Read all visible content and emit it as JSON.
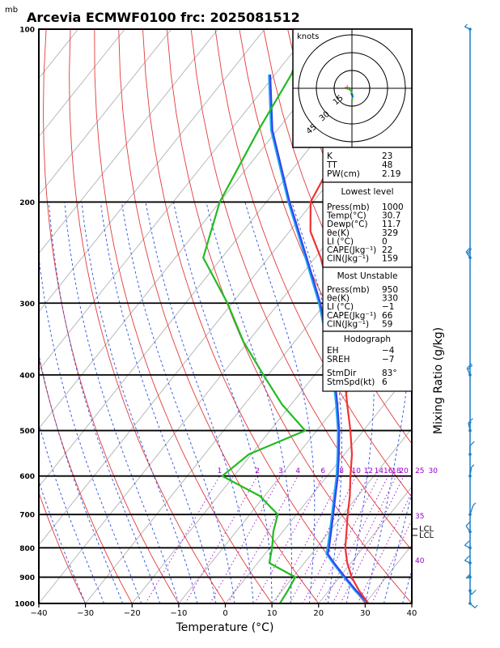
{
  "header": {
    "unit_mb": "mb",
    "title": "Arcevia ECMWF0100 frc: 2025081512"
  },
  "hodograph": {
    "unit": "knots",
    "ring_labels": [
      "15",
      "30",
      "45"
    ]
  },
  "indices": {
    "top": [
      {
        "label": "K",
        "value": "23"
      },
      {
        "label": "TT",
        "value": "48"
      },
      {
        "label": "PW(cm)",
        "value": "2.19"
      }
    ],
    "lowest": {
      "header": "Lowest level",
      "rows": [
        {
          "label": "Press(mb)",
          "value": "1000"
        },
        {
          "label": "Temp(°C)",
          "value": "30.7"
        },
        {
          "label": "Dewp(°C)",
          "value": "11.7"
        },
        {
          "label": "θe(K)",
          "value": "329"
        },
        {
          "label": "LI (°C)",
          "value": "0"
        },
        {
          "label": "CAPE(Jkg⁻¹)",
          "value": "22"
        },
        {
          "label": "CIN(Jkg⁻¹)",
          "value": "159"
        }
      ]
    },
    "unstable": {
      "header": "Most Unstable",
      "rows": [
        {
          "label": "Press(mb)",
          "value": "950"
        },
        {
          "label": "θe(K)",
          "value": "330"
        },
        {
          "label": "LI (°C)",
          "value": "−1"
        },
        {
          "label": "CAPE(Jkg⁻¹)",
          "value": "66"
        },
        {
          "label": "CIN(Jkg⁻¹)",
          "value": "59"
        }
      ]
    },
    "hodo": {
      "header": "Hodograph",
      "rows": [
        {
          "label": "EH",
          "value": "−4"
        },
        {
          "label": "SREH",
          "value": "−7"
        },
        {
          "label": "StmDir",
          "value": "83°"
        },
        {
          "label": "StmSpd(kt)",
          "value": "6"
        }
      ]
    }
  },
  "side_labels": {
    "mixing_ratio": "Mixing Ratio (g/kg)",
    "lcl_labels": [
      "LCL",
      "LCL"
    ],
    "theta_labels": [
      "35",
      "40"
    ]
  },
  "chart_data": {
    "type": "line",
    "chart_kind": "Skew-T log-P diagram",
    "xlabel": "Temperature (°C)",
    "ylabel": "",
    "x_ticks": [
      "−40",
      "−30",
      "−20",
      "−10",
      "0",
      "10",
      "20",
      "30",
      "40"
    ],
    "y_ticks": [
      "100",
      "200",
      "300",
      "400",
      "500",
      "600",
      "700",
      "800",
      "900",
      "1000"
    ],
    "xlim": [
      -40,
      40
    ],
    "ylim_hpa": [
      1000,
      100
    ],
    "y_scale": "log",
    "mixing_ratio_labels": [
      "1",
      "2",
      "3",
      "4",
      "6",
      "8",
      "10",
      "12",
      "14",
      "16",
      "18",
      "20",
      "25",
      "30"
    ],
    "series": [
      {
        "name": "temperature",
        "color": "#ee3333",
        "points": [
          [
            1000,
            30.7
          ],
          [
            950,
            26.5
          ],
          [
            900,
            22.6
          ],
          [
            850,
            19.2
          ],
          [
            800,
            16.2
          ],
          [
            750,
            13.7
          ],
          [
            700,
            11.0
          ],
          [
            650,
            8.3
          ],
          [
            600,
            5.0
          ],
          [
            550,
            1.6
          ],
          [
            500,
            -2.8
          ],
          [
            450,
            -8.0
          ],
          [
            400,
            -13.6
          ],
          [
            350,
            -20.3
          ],
          [
            300,
            -28.5
          ],
          [
            250,
            -38.8
          ],
          [
            225,
            -45.5
          ],
          [
            200,
            -50.5
          ],
          [
            150,
            -54.5
          ],
          [
            100,
            -56.0
          ]
        ]
      },
      {
        "name": "dewpoint",
        "color": "#22bb22",
        "points": [
          [
            1000,
            11.7
          ],
          [
            950,
            11.2
          ],
          [
            900,
            10.5
          ],
          [
            850,
            2.5
          ],
          [
            800,
            0.5
          ],
          [
            750,
            -2.0
          ],
          [
            700,
            -4.0
          ],
          [
            650,
            -11.0
          ],
          [
            600,
            -22.5
          ],
          [
            550,
            -20.5
          ],
          [
            500,
            -12.5
          ],
          [
            450,
            -22.0
          ],
          [
            400,
            -31.0
          ],
          [
            350,
            -41.0
          ],
          [
            300,
            -51.0
          ],
          [
            250,
            -64.0
          ],
          [
            200,
            -70.0
          ],
          [
            150,
            -74.0
          ],
          [
            120,
            -76.5
          ],
          [
            100,
            -80.5
          ]
        ]
      },
      {
        "name": "parcel",
        "color": "#3344ee",
        "points": [
          [
            1000,
            30.7
          ],
          [
            950,
            25.9
          ],
          [
            900,
            21.2
          ],
          [
            850,
            16.4
          ],
          [
            820,
            13.5
          ],
          [
            800,
            12.7
          ],
          [
            750,
            10.4
          ],
          [
            700,
            7.9
          ],
          [
            650,
            5.2
          ],
          [
            600,
            2.3
          ],
          [
            550,
            -1.2
          ],
          [
            500,
            -5.2
          ],
          [
            450,
            -10.1
          ],
          [
            400,
            -15.8
          ],
          [
            350,
            -22.8
          ],
          [
            300,
            -31.1
          ],
          [
            250,
            -41.8
          ],
          [
            200,
            -55.0
          ],
          [
            150,
            -71.0
          ],
          [
            120,
            -81.0
          ]
        ]
      },
      {
        "name": "parcel_environment",
        "color": "#22aaee",
        "points": [
          [
            1000,
            30.4
          ],
          [
            950,
            25.6
          ],
          [
            900,
            20.9
          ],
          [
            850,
            16.1
          ],
          [
            820,
            13.2
          ],
          [
            800,
            12.4
          ],
          [
            750,
            10.1
          ],
          [
            700,
            7.6
          ],
          [
            650,
            4.9
          ],
          [
            600,
            2.0
          ],
          [
            550,
            -1.5
          ],
          [
            500,
            -5.5
          ],
          [
            450,
            -10.4
          ],
          [
            400,
            -16.1
          ],
          [
            350,
            -23.1
          ],
          [
            300,
            -31.4
          ],
          [
            250,
            -42.1
          ],
          [
            200,
            -55.3
          ],
          [
            150,
            -71.3
          ],
          [
            120,
            -81.3
          ]
        ]
      }
    ],
    "wind_barbs": [
      {
        "pressure": 100,
        "dir": 270,
        "spd": 5
      },
      {
        "pressure": 250,
        "dir": 300,
        "spd": 25
      },
      {
        "pressure": 400,
        "dir": 310,
        "spd": 20
      },
      {
        "pressure": 500,
        "dir": 320,
        "spd": 15
      },
      {
        "pressure": 550,
        "dir": 330,
        "spd": 10
      },
      {
        "pressure": 600,
        "dir": 340,
        "spd": 5
      },
      {
        "pressure": 700,
        "dir": 350,
        "spd": 5
      },
      {
        "pressure": 750,
        "dir": 300,
        "spd": 10
      },
      {
        "pressure": 800,
        "dir": 270,
        "spd": 10
      },
      {
        "pressure": 850,
        "dir": 270,
        "spd": 10
      },
      {
        "pressure": 900,
        "dir": 240,
        "spd": 10
      },
      {
        "pressure": 950,
        "dir": 200,
        "spd": 10
      },
      {
        "pressure": 1000,
        "dir": 180,
        "spd": 5
      }
    ]
  }
}
